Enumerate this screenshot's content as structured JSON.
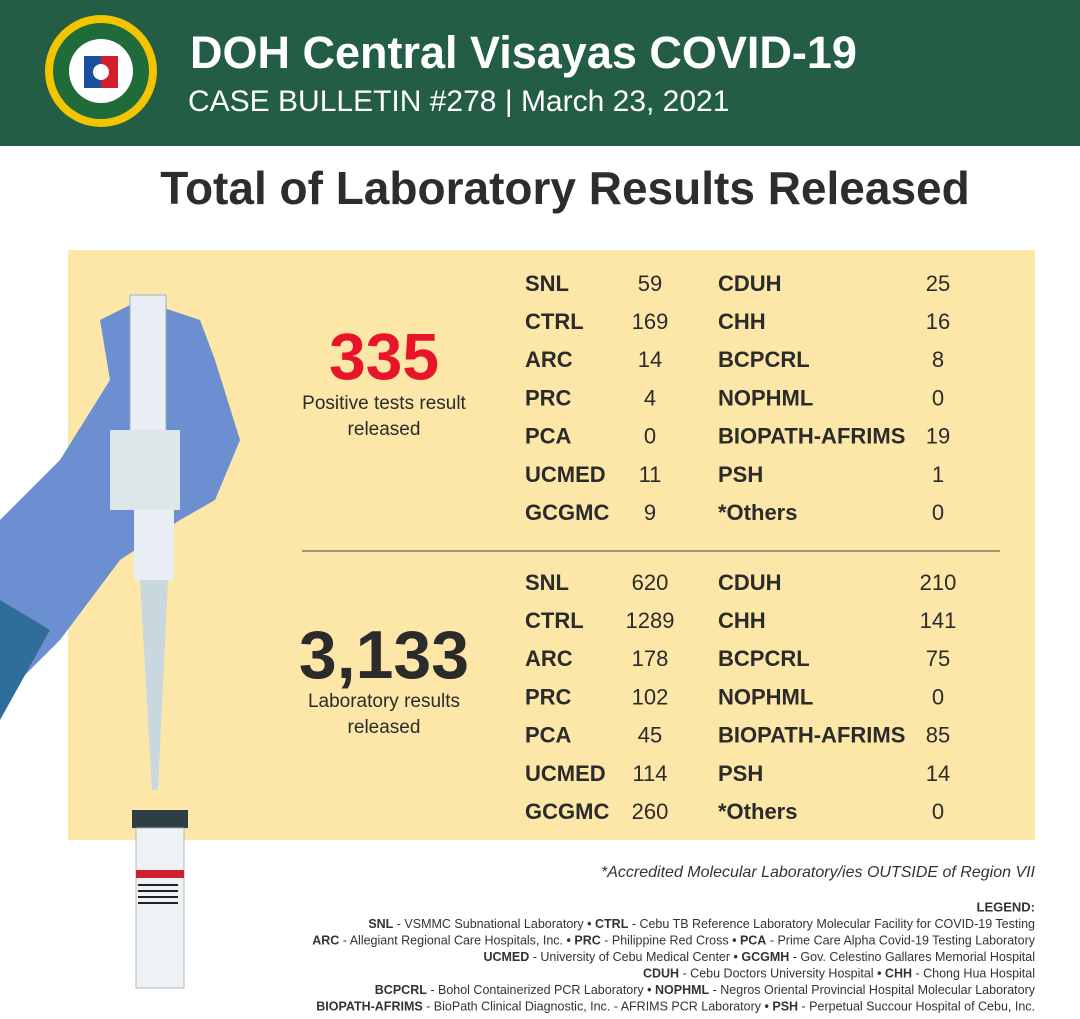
{
  "header": {
    "title": "DOH Central Visayas COVID-19",
    "subtitle": "CASE BULLETIN #278 | March 23, 2021"
  },
  "heading": "Total of Laboratory Results Released",
  "sections": [
    {
      "total": "335",
      "label": [
        "Positive tests result",
        "released"
      ],
      "left": [
        [
          "SNL",
          59
        ],
        [
          "CTRL",
          169
        ],
        [
          "ARC",
          14
        ],
        [
          "PRC",
          4
        ],
        [
          "PCA",
          0
        ],
        [
          "UCMED",
          11
        ],
        [
          "GCGMC",
          9
        ]
      ],
      "right": [
        [
          "CDUH",
          25
        ],
        [
          "CHH",
          16
        ],
        [
          "BCPCRL",
          8
        ],
        [
          "NOPHML",
          0
        ],
        [
          "BIOPATH-AFRIMS",
          19
        ],
        [
          "PSH",
          1
        ],
        [
          "*Others",
          0
        ]
      ]
    },
    {
      "total": "3,133",
      "label": [
        "Laboratory results",
        "released"
      ],
      "left": [
        [
          "SNL",
          620
        ],
        [
          "CTRL",
          1289
        ],
        [
          "ARC",
          178
        ],
        [
          "PRC",
          102
        ],
        [
          "PCA",
          45
        ],
        [
          "UCMED",
          114
        ],
        [
          "GCGMC",
          260
        ]
      ],
      "right": [
        [
          "CDUH",
          210
        ],
        [
          "CHH",
          141
        ],
        [
          "BCPCRL",
          75
        ],
        [
          "NOPHML",
          0
        ],
        [
          "BIOPATH-AFRIMS",
          85
        ],
        [
          "PSH",
          14
        ],
        [
          "*Others",
          0
        ]
      ]
    }
  ],
  "footnote": "*Accredited Molecular Laboratory/ies OUTSIDE of Region VII",
  "legend": {
    "title": "LEGEND:",
    "lines": [
      [
        [
          "SNL",
          " - VSMMC Subnational Laboratory"
        ],
        [
          "CTRL",
          " - Cebu TB Reference Laboratory Molecular Facility for COVID-19 Testing"
        ]
      ],
      [
        [
          "ARC",
          " - Allegiant Regional Care Hospitals, Inc."
        ],
        [
          "PRC",
          " - Philippine Red Cross"
        ],
        [
          "PCA",
          " - Prime Care Alpha Covid-19 Testing Laboratory"
        ]
      ],
      [
        [
          "UCMED",
          " - University of Cebu Medical Center"
        ],
        [
          "GCGMH",
          " - Gov. Celestino Gallares Memorial Hospital"
        ]
      ],
      [
        [
          "CDUH",
          " - Cebu Doctors University Hospital"
        ],
        [
          "CHH",
          " - Chong Hua Hospital"
        ]
      ],
      [
        [
          "BCPCRL",
          " - Bohol Containerized PCR Laboratory"
        ],
        [
          "NOPHML",
          " - Negros Oriental Provincial Hospital Molecular Laboratory"
        ]
      ],
      [
        [
          "BIOPATH-AFRIMS",
          " - BioPath Clinical Diagnostic, Inc. - AFRIMS PCR Laboratory"
        ],
        [
          "PSH",
          " - Perpetual Succour Hospital of Cebu, Inc."
        ]
      ]
    ]
  }
}
